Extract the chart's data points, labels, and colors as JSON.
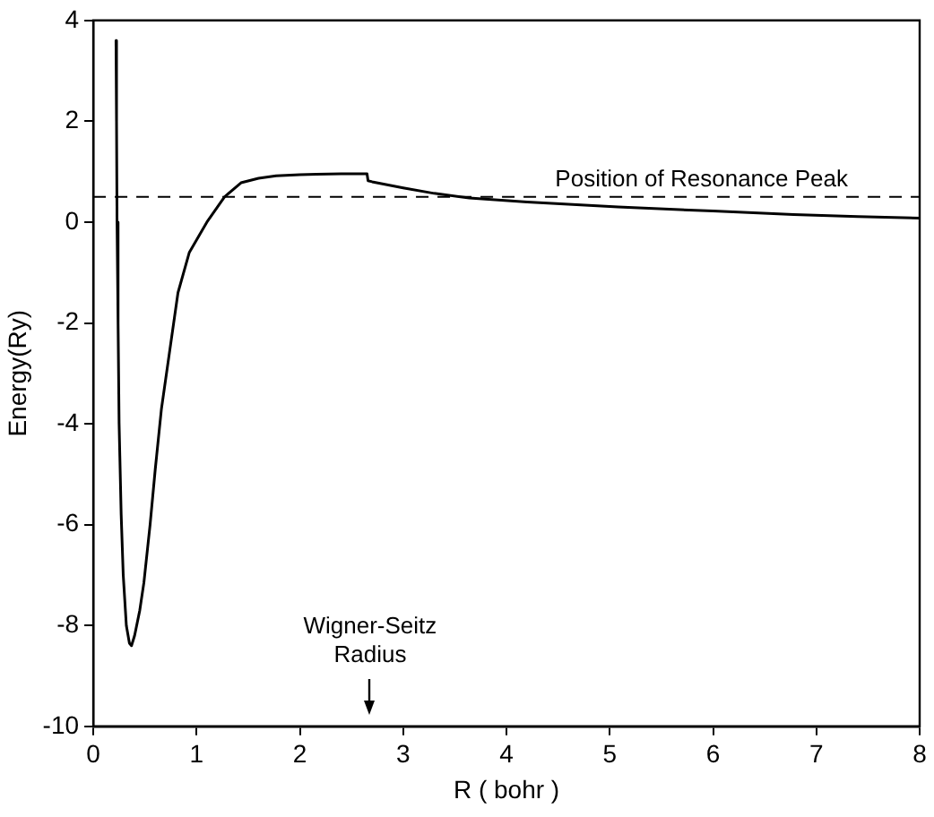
{
  "chart_data": {
    "type": "line",
    "xlabel": "R ( bohr )",
    "ylabel": "Energy(Ry)",
    "series": [
      {
        "color": "#000000",
        "x": [
          0.22,
          0.225,
          0.23,
          0.24,
          0.25,
          0.27,
          0.29,
          0.32,
          0.35,
          0.37,
          0.4,
          0.45,
          0.49,
          0.55,
          0.6,
          0.66,
          0.74,
          0.82,
          0.93,
          1.1,
          1.27,
          1.43,
          1.6,
          1.77,
          2.0,
          2.16,
          2.4,
          2.65,
          2.66,
          2.7,
          3.0,
          3.3,
          3.64,
          4.2,
          5.08,
          6.0,
          6.78,
          7.4,
          8.0
        ],
        "values": [
          3.6,
          2.0,
          0.0,
          -2.0,
          -4.0,
          -5.8,
          -7.0,
          -8.0,
          -8.35,
          -8.4,
          -8.2,
          -7.7,
          -7.15,
          -6.0,
          -4.9,
          -3.7,
          -2.55,
          -1.4,
          -0.6,
          0.0,
          0.5,
          0.78,
          0.87,
          0.92,
          0.94,
          0.95,
          0.96,
          0.96,
          0.82,
          0.8,
          0.68,
          0.57,
          0.48,
          0.4,
          0.3,
          0.22,
          0.15,
          0.11,
          0.08
        ]
      }
    ],
    "xlim": [
      0,
      8
    ],
    "xticks": [
      0,
      1,
      2,
      3,
      4,
      5,
      6,
      7,
      8
    ],
    "ylim": [
      -10,
      4
    ],
    "yticks": [
      -10,
      -8,
      -6,
      -4,
      -2,
      0,
      2,
      4
    ],
    "ref_lines": [
      {
        "axis": "y",
        "value": 0.5,
        "label": "Position of Resonance Peak",
        "line_style": "dashed",
        "color": "#000000"
      }
    ],
    "annotations": [
      "Wigner-Seitz Radius"
    ],
    "grid": false,
    "legend": false,
    "marker": "none",
    "line_style": "solid"
  }
}
